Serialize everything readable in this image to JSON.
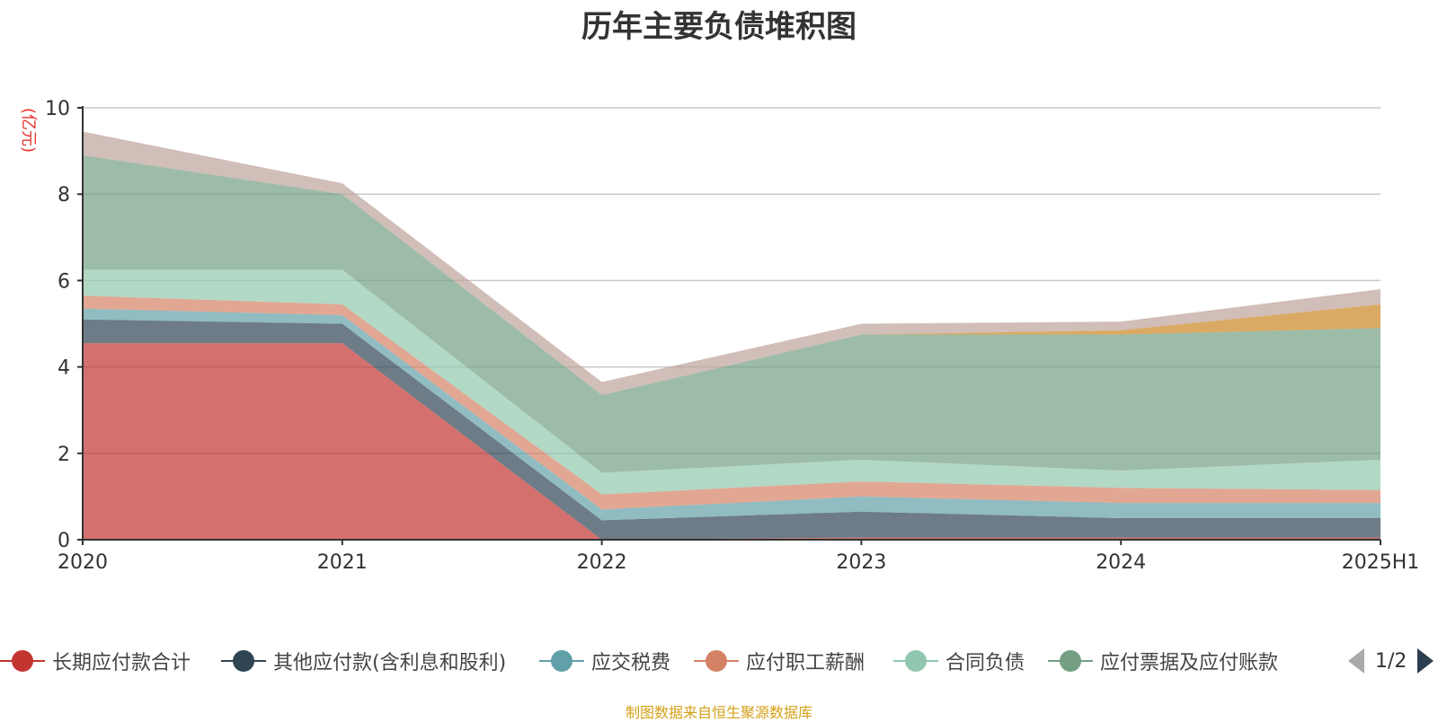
{
  "chart_data": {
    "type": "area",
    "stacked": true,
    "title": "历年主要负债堆积图",
    "unit_label": "(亿元)",
    "categories": [
      "2020",
      "2021",
      "2022",
      "2023",
      "2024",
      "2025H1"
    ],
    "ylim": [
      0,
      10
    ],
    "yticks": [
      0,
      2,
      4,
      6,
      8,
      10
    ],
    "grid": true,
    "series": [
      {
        "name": "长期应付款合计",
        "color": "#c23531",
        "values": [
          4.55,
          4.55,
          0.0,
          0.05,
          0.05,
          0.05
        ]
      },
      {
        "name": "其他应付款(含利息和股利)",
        "color": "#2f4554",
        "values": [
          0.55,
          0.45,
          0.45,
          0.6,
          0.45,
          0.45
        ]
      },
      {
        "name": "应交税费",
        "color": "#61a0a8",
        "values": [
          0.25,
          0.2,
          0.25,
          0.35,
          0.35,
          0.35
        ]
      },
      {
        "name": "应付职工薪酬",
        "color": "#d48265",
        "values": [
          0.3,
          0.25,
          0.35,
          0.35,
          0.35,
          0.3
        ]
      },
      {
        "name": "合同负债",
        "color": "#91c7ae",
        "values": [
          0.6,
          0.8,
          0.5,
          0.5,
          0.4,
          0.7
        ]
      },
      {
        "name": "应付票据及应付账款",
        "color": "#749f83",
        "values": [
          2.65,
          1.75,
          1.8,
          2.9,
          3.15,
          3.05
        ]
      },
      {
        "name": "",
        "color": "#ca8622",
        "values": [
          0.0,
          0.0,
          0.0,
          0.0,
          0.1,
          0.55
        ]
      },
      {
        "name": "",
        "color": "#bda29a",
        "values": [
          0.55,
          0.25,
          0.3,
          0.25,
          0.2,
          0.35
        ]
      }
    ]
  },
  "legend": {
    "items": [
      {
        "label": "长期应付款合计",
        "color": "#c23531"
      },
      {
        "label": "其他应付款(含利息和股利)",
        "color": "#2f4554"
      },
      {
        "label": "应交税费",
        "color": "#61a0a8"
      },
      {
        "label": "应付职工薪酬",
        "color": "#d48265"
      },
      {
        "label": "合同负债",
        "color": "#91c7ae"
      },
      {
        "label": "应付票据及应付账款",
        "color": "#749f83"
      }
    ],
    "page": "1/2"
  },
  "source_note": "制图数据来自恒生聚源数据库"
}
